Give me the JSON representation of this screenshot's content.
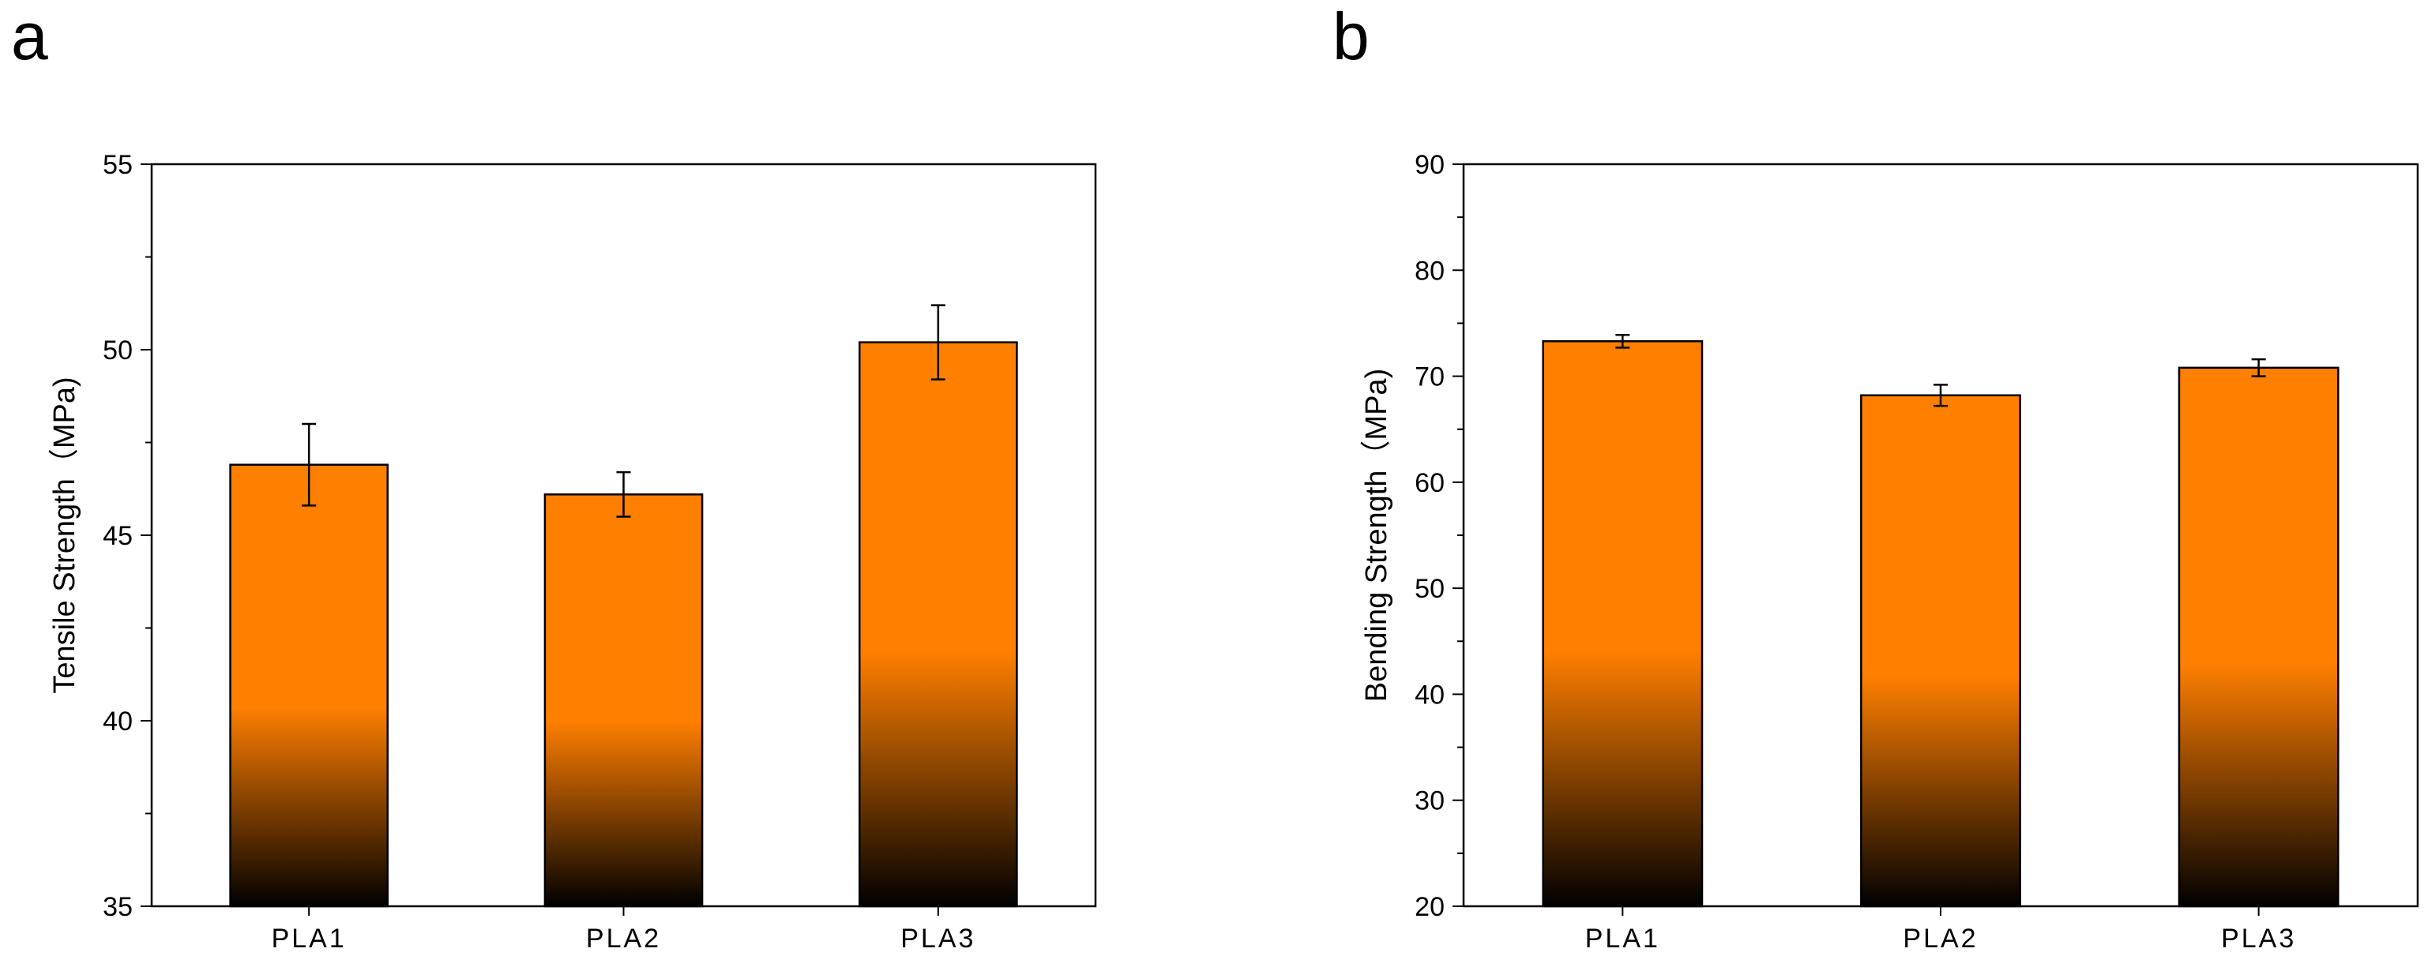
{
  "figure": {
    "bar_gradient": {
      "top": "#ff7f00",
      "mid": "#ff7f00",
      "bottom": "#000000"
    }
  },
  "chart_data": [
    {
      "panel_label": "a",
      "type": "bar",
      "categories": [
        "PLA1",
        "PLA2",
        "PLA3"
      ],
      "values": [
        46.9,
        46.1,
        50.2
      ],
      "errors": [
        1.1,
        0.6,
        1.0
      ],
      "ylabel": "Tensile Strength（MPa)",
      "xlabel": "",
      "ylim": [
        35,
        55
      ],
      "yticks": [
        35,
        40,
        45,
        50,
        55
      ],
      "ytick_labels": [
        "35",
        "40",
        "45",
        "50",
        "55"
      ],
      "grid": false
    },
    {
      "panel_label": "b",
      "type": "bar",
      "categories": [
        "PLA1",
        "PLA2",
        "PLA3"
      ],
      "values": [
        73.3,
        68.2,
        70.8
      ],
      "errors": [
        0.6,
        1.0,
        0.8
      ],
      "ylabel": "Bending Strength（MPa)",
      "xlabel": "",
      "ylim": [
        20,
        90
      ],
      "yticks": [
        20,
        30,
        40,
        50,
        60,
        70,
        80,
        90
      ],
      "ytick_labels": [
        "20",
        "30",
        "40",
        "50",
        "60",
        "70",
        "80",
        "90"
      ],
      "grid": false
    }
  ]
}
